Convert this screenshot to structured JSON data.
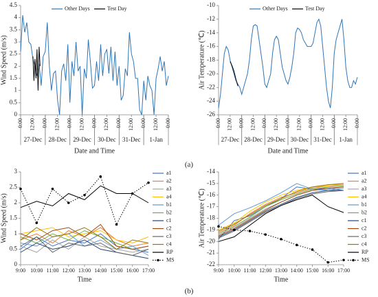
{
  "panel_labels": [
    "(a)",
    "(b)"
  ],
  "chart_data": [
    {
      "type": "line",
      "ylabel": "Wind Speed (m/s)",
      "xlabel": "Date and Time",
      "legend": "top",
      "xlim": [
        0,
        144
      ],
      "xticks": [
        {
          "value": 0,
          "label": "0:00"
        },
        {
          "value": 12,
          "label": "12:00"
        },
        {
          "value": 24,
          "label": "0:00"
        },
        {
          "value": 36,
          "label": "12:00"
        },
        {
          "value": 48,
          "label": "0:00"
        },
        {
          "value": 60,
          "label": "12:00"
        },
        {
          "value": 72,
          "label": "0:00"
        },
        {
          "value": 84,
          "label": "12:00"
        },
        {
          "value": 96,
          "label": "0:00"
        },
        {
          "value": 108,
          "label": "12:00"
        },
        {
          "value": 120,
          "label": "0:00"
        },
        {
          "value": 132,
          "label": "12:00"
        },
        {
          "value": 144,
          "label": "0:00"
        }
      ],
      "x_groups": [
        {
          "label": "27-Dec",
          "start": 0,
          "end": 24
        },
        {
          "label": "28-Dec",
          "start": 24,
          "end": 48
        },
        {
          "label": "29-Dec",
          "start": 48,
          "end": 72
        },
        {
          "label": "30-Dec",
          "start": 72,
          "end": 96
        },
        {
          "label": "31-Dec",
          "start": 96,
          "end": 120
        },
        {
          "label": "1-Jan",
          "start": 120,
          "end": 144
        }
      ],
      "ylim": [
        0,
        4.5
      ],
      "yticks": [
        0,
        0.5,
        1,
        1.5,
        2,
        2.5,
        3,
        3.5,
        4,
        4.5
      ],
      "series": [
        {
          "name": "Other Days",
          "color": "#2e75b6",
          "x": [
            0,
            2,
            4,
            6,
            8,
            10,
            12,
            14,
            16,
            18,
            20,
            22,
            24,
            26,
            28,
            30,
            32,
            34,
            36,
            38,
            40,
            42,
            44,
            46,
            48,
            50,
            52,
            54,
            56,
            58,
            60,
            62,
            64,
            66,
            68,
            70,
            72,
            74,
            76,
            78,
            80,
            82,
            84,
            86,
            88,
            90,
            92,
            94,
            96,
            98,
            100,
            102,
            104,
            106,
            108,
            110,
            112,
            114,
            116,
            118,
            120,
            122,
            124,
            126,
            128,
            130,
            132,
            134,
            136,
            138,
            140,
            142,
            144
          ],
          "values": [
            2.6,
            4.1,
            3.4,
            3.8,
            3.0,
            2.9,
            2.3,
            2.0,
            1.6,
            2.1,
            1.2,
            2.4,
            2.6,
            3.8,
            2.0,
            1.0,
            1.7,
            1.8,
            0.6,
            0.0,
            1.8,
            2.1,
            1.4,
            2.9,
            0.5,
            2.2,
            1.6,
            3.0,
            1.8,
            2.0,
            0.0,
            1.9,
            1.5,
            3.1,
            2.2,
            1.1,
            1.2,
            2.2,
            1.4,
            2.9,
            1.6,
            2.5,
            2.7,
            1.7,
            2.8,
            1.4,
            2.6,
            1.2,
            2.0,
            0.6,
            0.8,
            1.9,
            1.6,
            3.4,
            2.5,
            2.2,
            1.5,
            1.5,
            0.2,
            0.0,
            1.4,
            0.6,
            1.6,
            1.2,
            1.0,
            0.0,
            1.5,
            1.9,
            2.4,
            1.8,
            2.2,
            1.2,
            1.6
          ]
        },
        {
          "name": "Test Day",
          "color": "#000000",
          "x": [
            12,
            13,
            14,
            15,
            16,
            17,
            18,
            19
          ],
          "values": [
            2.4,
            1.4,
            2.3,
            1.5,
            2.7,
            1.0,
            2.8,
            2.0
          ]
        }
      ]
    },
    {
      "type": "line",
      "ylabel": "Air Temperature (℃)",
      "xlabel": "Date and Time",
      "legend": "top",
      "xlim": [
        0,
        144
      ],
      "xticks": [
        {
          "value": 0,
          "label": "0:00"
        },
        {
          "value": 12,
          "label": "12:00"
        },
        {
          "value": 24,
          "label": "0:00"
        },
        {
          "value": 36,
          "label": "12:00"
        },
        {
          "value": 48,
          "label": "0:00"
        },
        {
          "value": 60,
          "label": "12:00"
        },
        {
          "value": 72,
          "label": "0:00"
        },
        {
          "value": 84,
          "label": "12:00"
        },
        {
          "value": 96,
          "label": "0:00"
        },
        {
          "value": 108,
          "label": "12:00"
        },
        {
          "value": 120,
          "label": "0:00"
        },
        {
          "value": 132,
          "label": "12:00"
        },
        {
          "value": 144,
          "label": "0:00"
        }
      ],
      "x_groups": [
        {
          "label": "27-Dec",
          "start": 0,
          "end": 24
        },
        {
          "label": "28-Dec",
          "start": 24,
          "end": 48
        },
        {
          "label": "29-Dec",
          "start": 48,
          "end": 72
        },
        {
          "label": "30-Dec",
          "start": 72,
          "end": 96
        },
        {
          "label": "31-Dec",
          "start": 96,
          "end": 120
        },
        {
          "label": "1-Jan",
          "start": 120,
          "end": 144
        }
      ],
      "ylim": [
        -26,
        -10
      ],
      "yticks": [
        -26,
        -24,
        -22,
        -20,
        -18,
        -16,
        -14,
        -12,
        -10
      ],
      "series": [
        {
          "name": "Other Days",
          "color": "#2e75b6",
          "x": [
            0,
            2,
            4,
            6,
            8,
            10,
            12,
            14,
            16,
            18,
            20,
            22,
            24,
            26,
            28,
            30,
            32,
            34,
            36,
            38,
            40,
            42,
            44,
            46,
            48,
            50,
            52,
            54,
            56,
            58,
            60,
            62,
            64,
            66,
            68,
            70,
            72,
            74,
            76,
            78,
            80,
            82,
            84,
            86,
            88,
            90,
            92,
            94,
            96,
            98,
            100,
            102,
            104,
            106,
            108,
            110,
            112,
            114,
            116,
            118,
            120,
            122,
            124,
            126,
            128,
            130,
            132,
            134,
            136,
            138,
            140,
            142,
            144
          ],
          "values": [
            -25,
            -23,
            -20,
            -17,
            -16,
            -16.5,
            -18,
            -19,
            -20,
            -21,
            -21.5,
            -22,
            -23,
            -22,
            -21,
            -20,
            -18,
            -15,
            -13,
            -12.8,
            -13,
            -15,
            -17,
            -19,
            -21.5,
            -22,
            -21,
            -20,
            -17,
            -15,
            -14.5,
            -15,
            -17,
            -19,
            -20,
            -21,
            -21.5,
            -20.5,
            -19,
            -17,
            -14,
            -13.3,
            -13.5,
            -14,
            -15,
            -15.5,
            -16,
            -16,
            -16,
            -15.5,
            -14,
            -12.5,
            -12,
            -13,
            -16,
            -19,
            -22,
            -24,
            -25,
            -22,
            -17,
            -15,
            -14,
            -13,
            -12,
            -15,
            -19,
            -21,
            -22,
            -22,
            -21,
            -21.5,
            -20.5
          ]
        },
        {
          "name": "Test Day",
          "color": "#000000",
          "x": [
            12,
            14,
            16,
            18,
            20
          ],
          "values": [
            -18.2,
            -18.8,
            -19.6,
            -20.8,
            -21.8
          ]
        }
      ]
    },
    {
      "type": "line",
      "ylabel": "Wind Speed (m/s)",
      "xlabel": "Time",
      "legend": "right",
      "x": [
        9,
        10,
        11,
        12,
        13,
        14,
        15,
        16,
        17
      ],
      "xlim": [
        9,
        17
      ],
      "xticks": [
        {
          "value": 9,
          "label": "9:00"
        },
        {
          "value": 10,
          "label": "10:00"
        },
        {
          "value": 11,
          "label": "11:00"
        },
        {
          "value": 12,
          "label": "12:00"
        },
        {
          "value": 13,
          "label": "13:00"
        },
        {
          "value": 14,
          "label": "14:00"
        },
        {
          "value": 15,
          "label": "15:00"
        },
        {
          "value": 16,
          "label": "16:00"
        },
        {
          "value": 17,
          "label": "17:00"
        }
      ],
      "ylim": [
        0,
        3
      ],
      "yticks": [
        0,
        0.5,
        1,
        1.5,
        2,
        2.5,
        3
      ],
      "series": [
        {
          "name": "a1",
          "color": "#4472c4",
          "values": [
            0.5,
            0.9,
            0.6,
            0.8,
            0.7,
            1.0,
            0.6,
            0.5,
            0.4
          ]
        },
        {
          "name": "a2",
          "color": "#ed7d31",
          "values": [
            0.8,
            1.0,
            0.7,
            1.1,
            0.9,
            1.2,
            0.8,
            0.6,
            0.7
          ]
        },
        {
          "name": "a3",
          "color": "#a5a5a5",
          "values": [
            0.6,
            0.4,
            0.8,
            0.5,
            0.9,
            0.6,
            0.5,
            0.4,
            0.5
          ]
        },
        {
          "name": "a4",
          "color": "#ffc000",
          "values": [
            1.0,
            1.1,
            1.2,
            0.9,
            1.0,
            1.1,
            0.8,
            0.7,
            0.9
          ]
        },
        {
          "name": "b1",
          "color": "#5b9bd5",
          "values": [
            0.7,
            0.6,
            0.9,
            1.0,
            0.6,
            0.8,
            0.5,
            0.6,
            0.3
          ]
        },
        {
          "name": "b2",
          "color": "#70ad47",
          "values": [
            0.9,
            0.7,
            1.0,
            0.8,
            1.1,
            0.9,
            0.7,
            0.5,
            0.6
          ]
        },
        {
          "name": "c1",
          "color": "#264478",
          "values": [
            0.4,
            0.7,
            0.5,
            0.6,
            0.8,
            0.5,
            0.4,
            0.3,
            0.2
          ]
        },
        {
          "name": "c2",
          "color": "#9e480e",
          "values": [
            1.0,
            0.8,
            1.1,
            1.2,
            0.9,
            1.3,
            0.6,
            0.5,
            0.6
          ]
        },
        {
          "name": "c3",
          "color": "#636363",
          "values": [
            0.6,
            0.9,
            0.4,
            0.7,
            0.6,
            0.7,
            0.4,
            0.3,
            0.5
          ]
        },
        {
          "name": "c4",
          "color": "#997300",
          "values": [
            0.8,
            1.2,
            0.9,
            1.0,
            1.2,
            0.9,
            0.5,
            0.8,
            0.7
          ]
        },
        {
          "name": "RP",
          "color": "#000000",
          "values": [
            1.85,
            2.05,
            1.9,
            2.3,
            2.1,
            2.55,
            2.3,
            2.3,
            2.0
          ]
        },
        {
          "name": "MS",
          "color": "#000000",
          "dash": "dotted",
          "marker": "circle",
          "values": [
            2.45,
            1.35,
            2.45,
            2.0,
            2.25,
            2.85,
            1.3,
            2.3,
            2.65
          ]
        }
      ]
    },
    {
      "type": "line",
      "ylabel": "Air Temperature (℃)",
      "xlabel": "Time",
      "legend": "right",
      "x": [
        9,
        10,
        11,
        12,
        13,
        14,
        15,
        16,
        17
      ],
      "xlim": [
        9,
        17
      ],
      "xticks": [
        {
          "value": 9,
          "label": "9:00"
        },
        {
          "value": 10,
          "label": "10:00"
        },
        {
          "value": 11,
          "label": "11:00"
        },
        {
          "value": 12,
          "label": "12:00"
        },
        {
          "value": 13,
          "label": "13:00"
        },
        {
          "value": 14,
          "label": "14:00"
        },
        {
          "value": 15,
          "label": "15:00"
        },
        {
          "value": 16,
          "label": "16:00"
        },
        {
          "value": 17,
          "label": "17:00"
        }
      ],
      "ylim": [
        -22,
        -14
      ],
      "yticks": [
        -22,
        -21,
        -20,
        -19,
        -18,
        -17,
        -16,
        -15,
        -14
      ],
      "series": [
        {
          "name": "a1",
          "color": "#4472c4",
          "values": [
            -19.8,
            -18.2,
            -17.8,
            -17.0,
            -16.3,
            -15.3,
            -15.5,
            -15.4,
            -15.6
          ]
        },
        {
          "name": "a2",
          "color": "#ed7d31",
          "values": [
            -19.2,
            -18.6,
            -17.6,
            -16.8,
            -16.2,
            -15.8,
            -15.4,
            -15.2,
            -15.1
          ]
        },
        {
          "name": "a3",
          "color": "#a5a5a5",
          "values": [
            -19.4,
            -18.8,
            -18.0,
            -17.2,
            -16.6,
            -16.0,
            -15.6,
            -15.5,
            -15.3
          ]
        },
        {
          "name": "a4",
          "color": "#ffc000",
          "values": [
            -19.0,
            -18.4,
            -17.4,
            -16.6,
            -16.0,
            -15.6,
            -15.3,
            -15.2,
            -15.0
          ]
        },
        {
          "name": "b1",
          "color": "#5b9bd5",
          "values": [
            -18.6,
            -17.6,
            -17.1,
            -16.5,
            -15.8,
            -15.0,
            -15.5,
            -15.6,
            -15.4
          ]
        },
        {
          "name": "b2",
          "color": "#70ad47",
          "values": [
            -19.3,
            -18.7,
            -17.9,
            -17.0,
            -16.4,
            -15.9,
            -15.5,
            -15.3,
            -15.2
          ]
        },
        {
          "name": "c1",
          "color": "#264478",
          "values": [
            -19.6,
            -19.0,
            -18.2,
            -17.4,
            -16.8,
            -16.2,
            -15.8,
            -15.6,
            -15.6
          ]
        },
        {
          "name": "c2",
          "color": "#9e480e",
          "values": [
            -19.5,
            -18.9,
            -18.1,
            -17.3,
            -16.6,
            -16.0,
            -15.6,
            -15.4,
            -15.3
          ]
        },
        {
          "name": "c3",
          "color": "#636363",
          "values": [
            -19.7,
            -19.1,
            -18.3,
            -17.5,
            -16.9,
            -16.3,
            -15.9,
            -15.7,
            -15.6
          ]
        },
        {
          "name": "c4",
          "color": "#997300",
          "values": [
            -19.1,
            -18.5,
            -17.7,
            -16.9,
            -16.3,
            -15.7,
            -15.3,
            -15.1,
            -15.0
          ]
        },
        {
          "name": "RP",
          "color": "#000000",
          "values": [
            -20.0,
            -19.6,
            -18.6,
            -17.6,
            -16.9,
            -16.4,
            -16.0,
            -17.0,
            -17.5
          ]
        },
        {
          "name": "MS",
          "color": "#000000",
          "dash": "dotted",
          "marker": "circle",
          "values": [
            -18.7,
            -19.0,
            -19.1,
            -19.4,
            -19.8,
            -20.3,
            -20.7,
            -21.8,
            -21.6
          ]
        }
      ]
    }
  ]
}
